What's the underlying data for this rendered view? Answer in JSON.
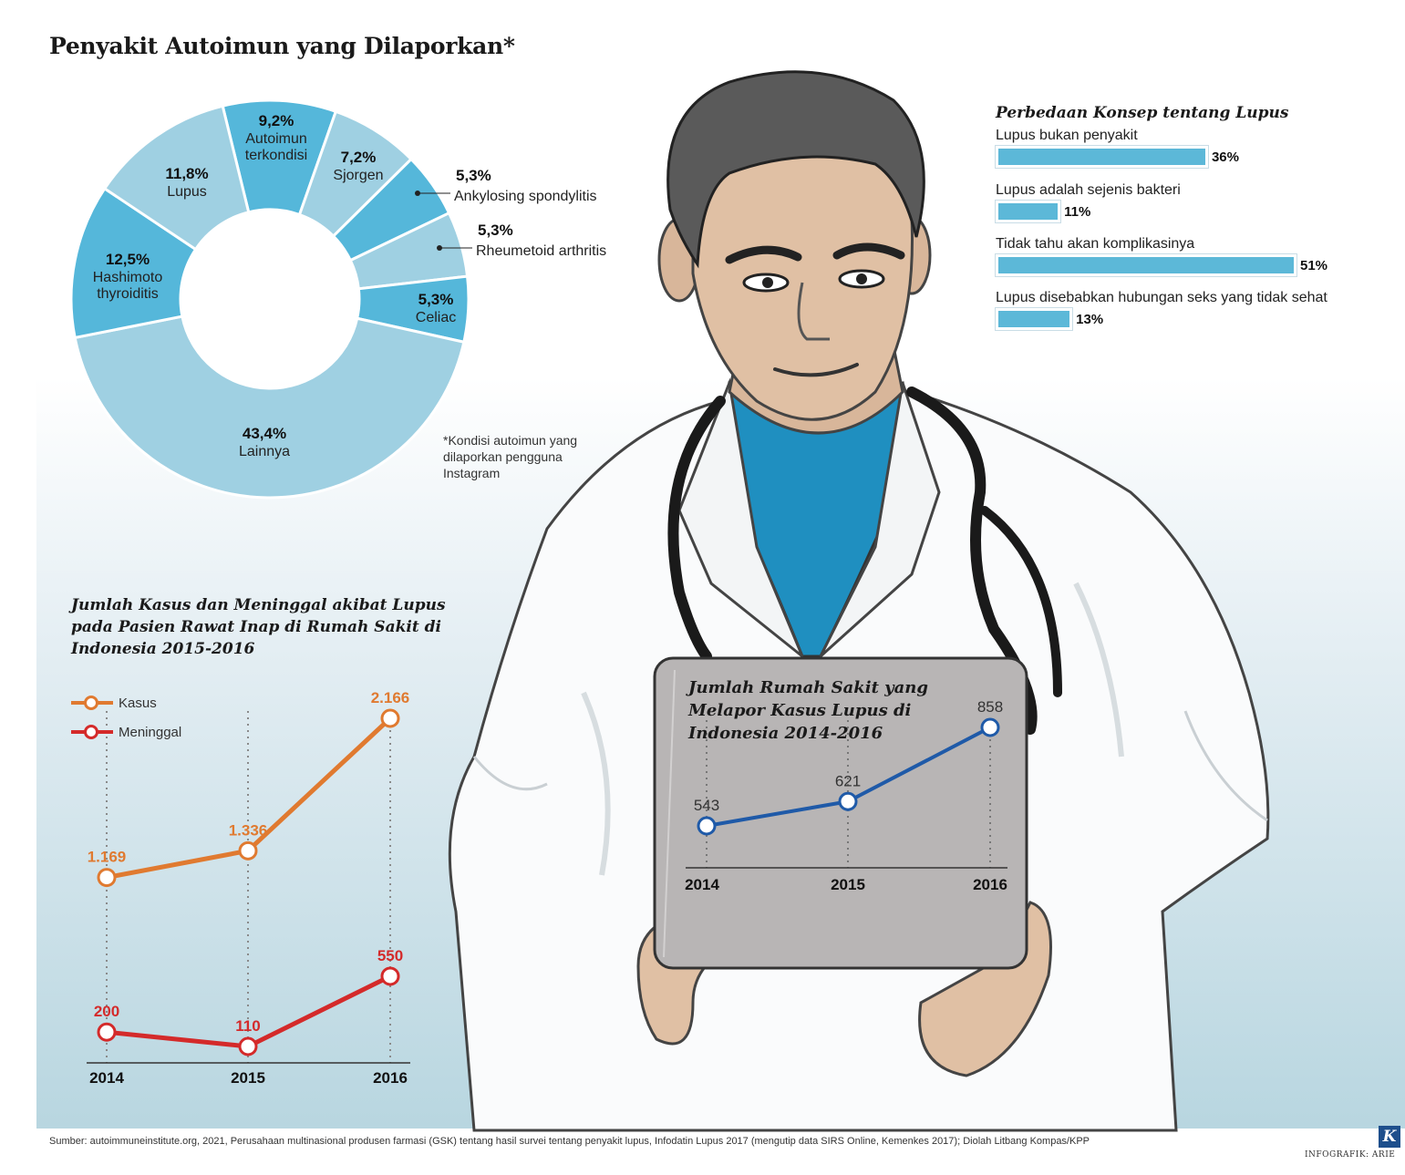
{
  "title": "Penyakit Autoimun yang Dilaporkan*",
  "footnote": "*Kondisi autoimun yang dilaporkan pengguna Instagram",
  "source": "Sumber: autoimmuneinstitute.org, 2021, Perusahaan multinasional produsen farmasi (GSK) tentang hasil survei tentang penyakit lupus, Infodatin Lupus 2017 (mengutip data SIRS Online, Kemenkes 2017); Diolah Litbang Kompas/KPP",
  "credit": "INFOGRAFIK: ARIE",
  "logo": "K",
  "colors": {
    "donut_dark": "#55b7da",
    "donut_light": "#9fd0e2",
    "bar": "#5cb8d8",
    "kasus": "#e07a30",
    "meninggal": "#d42a2a",
    "rs": "#1f5aa8"
  },
  "illustration": "doctor-holding-tablet",
  "chart_data": [
    {
      "type": "pie",
      "title": "Penyakit Autoimun yang Dilaporkan*",
      "slices": [
        {
          "label": "Autoimun terkondisi",
          "value": 9.2,
          "display": "9,2%",
          "fill": "#55b7da"
        },
        {
          "label": "Sjorgen",
          "value": 7.2,
          "display": "7,2%",
          "fill": "#9fd0e2"
        },
        {
          "label": "Ankylosing spondylitis",
          "value": 5.3,
          "display": "5,3%",
          "fill": "#55b7da"
        },
        {
          "label": "Rheumetoid arthritis",
          "value": 5.3,
          "display": "5,3%",
          "fill": "#9fd0e2"
        },
        {
          "label": "Celiac",
          "value": 5.3,
          "display": "5,3%",
          "fill": "#55b7da"
        },
        {
          "label": "Lainnya",
          "value": 43.4,
          "display": "43,4%",
          "fill": "#9fd0e2"
        },
        {
          "label": "Hashimoto thyroiditis",
          "value": 12.5,
          "display": "12,5%",
          "fill": "#55b7da"
        },
        {
          "label": "Lupus",
          "value": 11.8,
          "display": "11,8%",
          "fill": "#9fd0e2"
        }
      ]
    },
    {
      "type": "bar",
      "title": "Perbedaan Konsep tentang Lupus",
      "categories": [
        "Lupus bukan penyakit",
        "Lupus adalah sejenis bakteri",
        "Tidak tahu akan komplikasinya",
        "Lupus disebabkan hubungan seks yang tidak sehat"
      ],
      "values": [
        36,
        11,
        51,
        13
      ],
      "labels": [
        "36%",
        "11%",
        "51%",
        "13%"
      ]
    },
    {
      "type": "line",
      "title": "Jumlah Kasus dan Meninggal akibat Lupus pada Pasien Rawat Inap di Rumah Sakit di Indonesia 2015-2016",
      "x": [
        "2014",
        "2015",
        "2016"
      ],
      "series": [
        {
          "name": "Kasus",
          "values": [
            1169,
            1336,
            2166
          ],
          "labels": [
            "1.169",
            "1.336",
            "2.166"
          ]
        },
        {
          "name": "Meninggal",
          "values": [
            200,
            110,
            550
          ],
          "labels": [
            "200",
            "110",
            "550"
          ]
        }
      ]
    },
    {
      "type": "line",
      "title": "Jumlah Rumah Sakit yang Melapor Kasus Lupus di Indonesia 2014-2016",
      "x": [
        "2014",
        "2015",
        "2016"
      ],
      "series": [
        {
          "values": [
            543,
            621,
            858
          ],
          "labels": [
            "543",
            "621",
            "858"
          ]
        }
      ]
    }
  ]
}
